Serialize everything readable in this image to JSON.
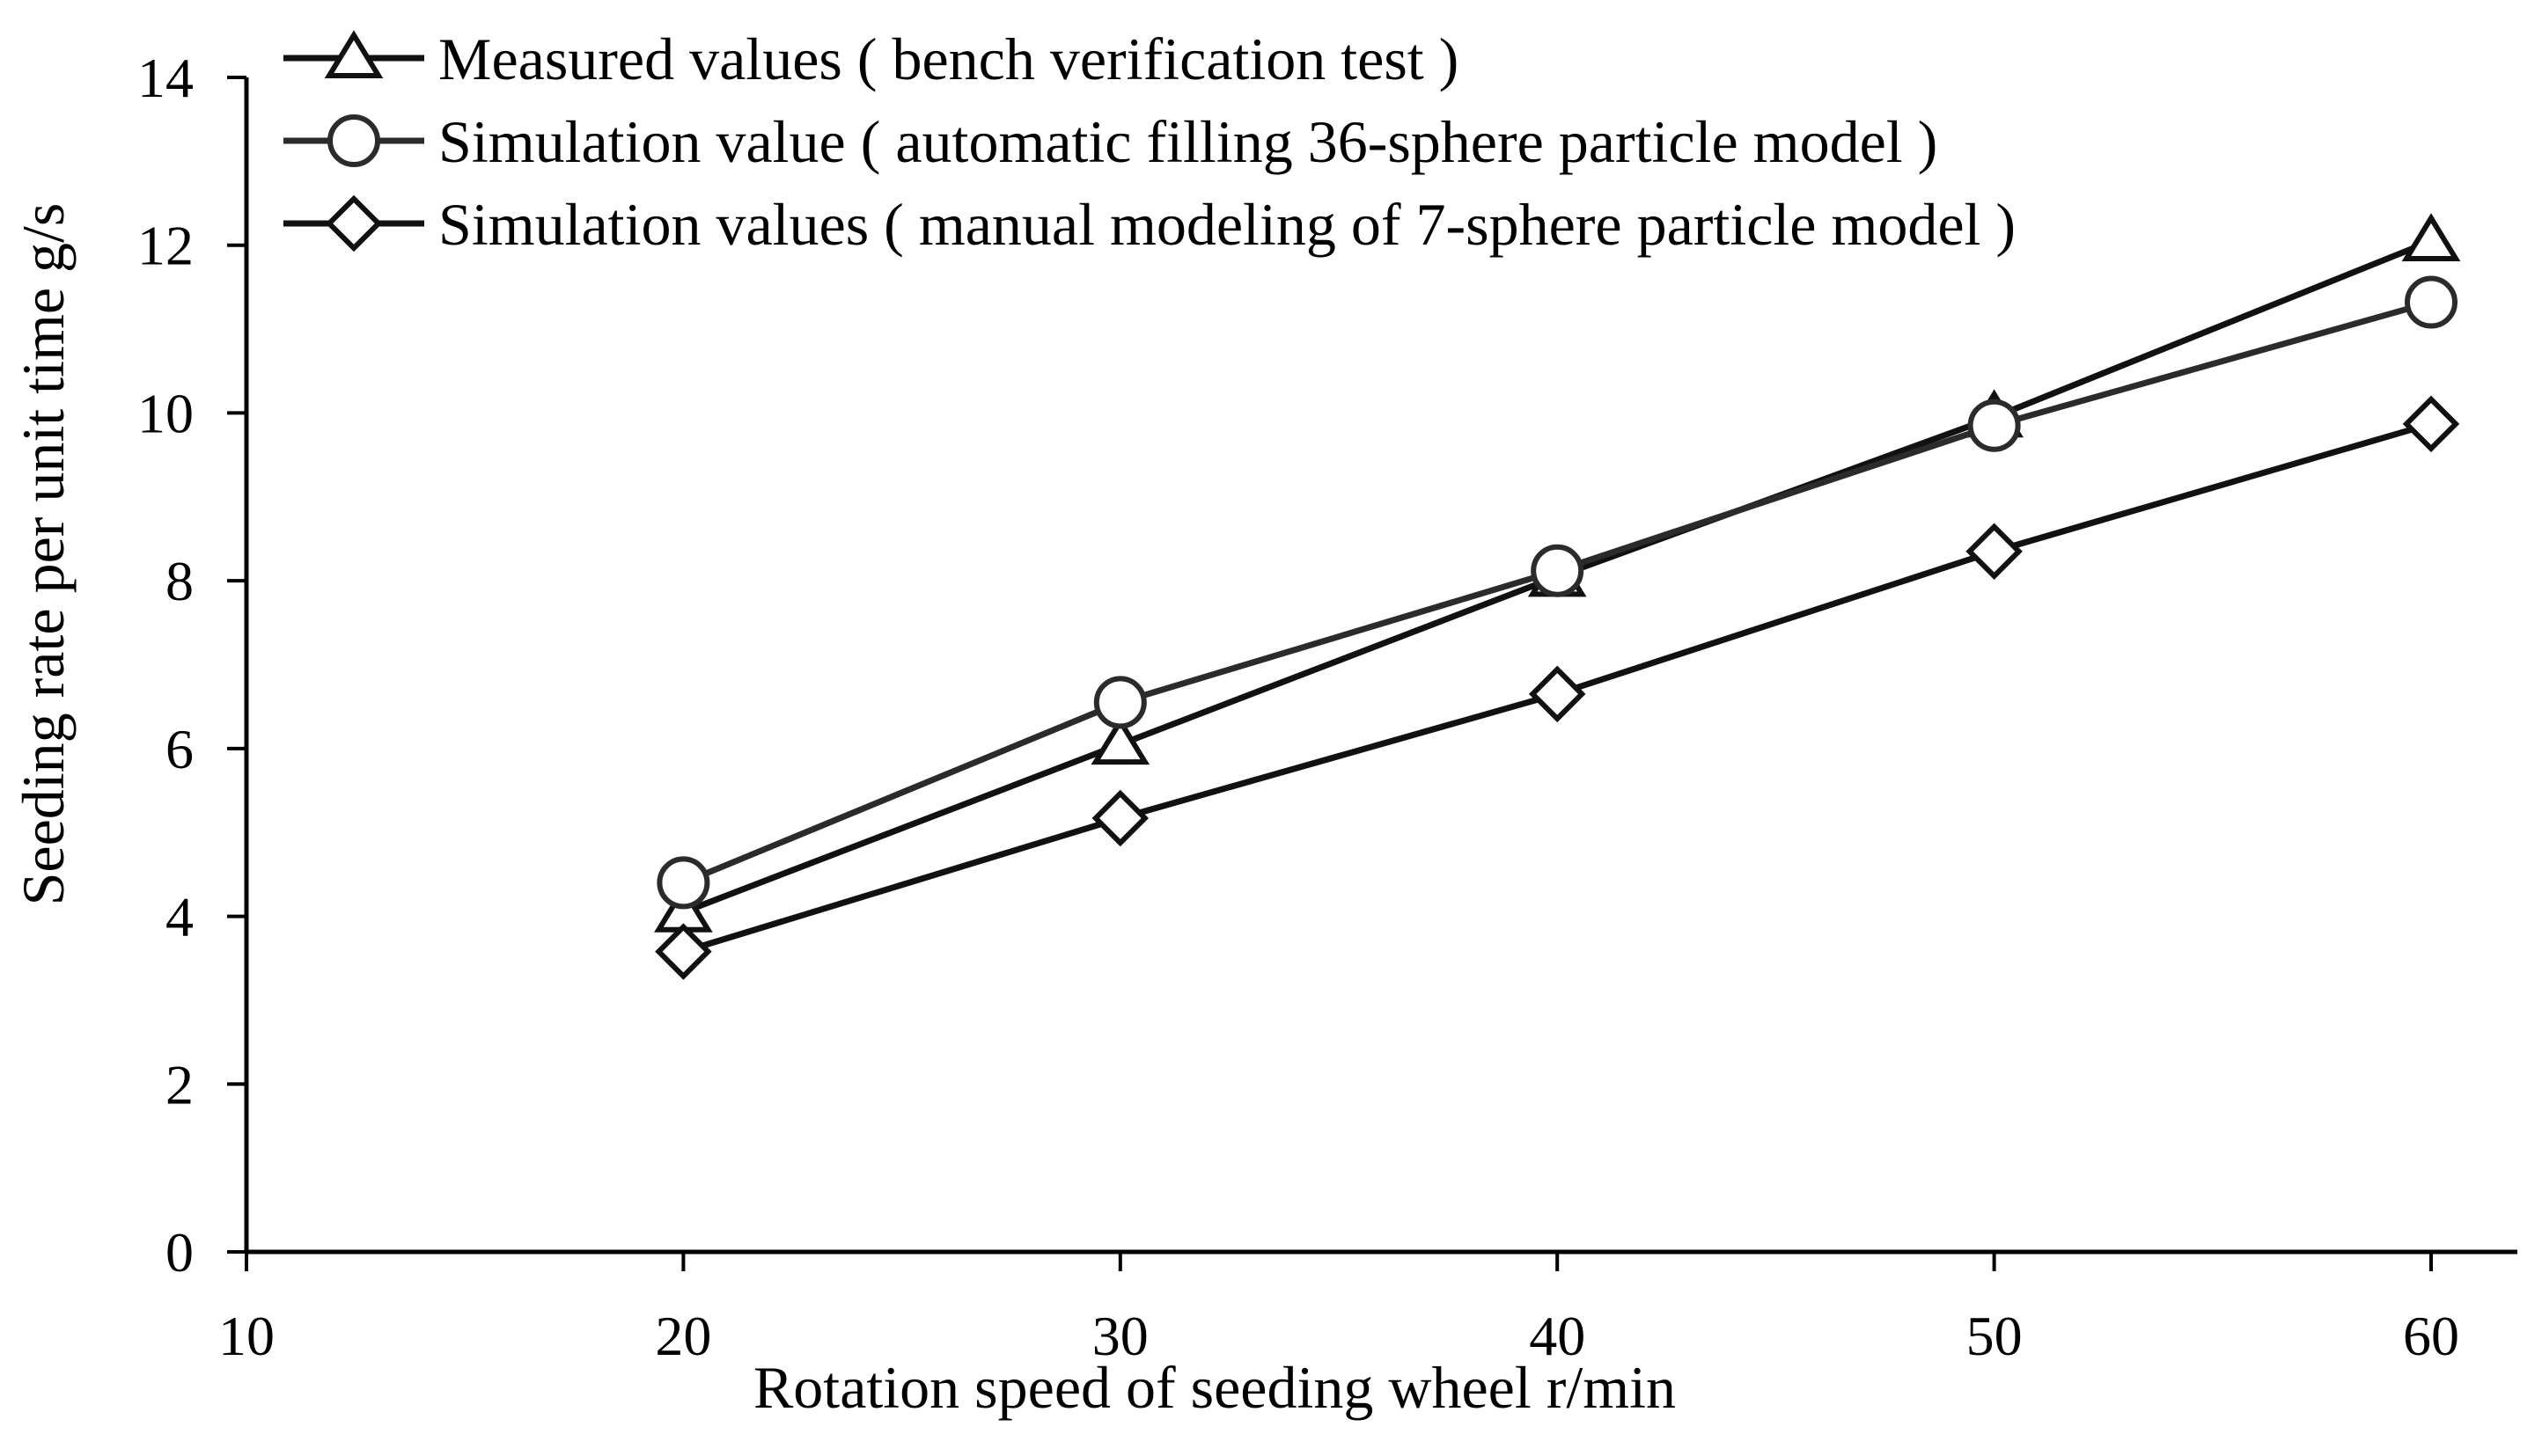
{
  "chart_data": {
    "type": "line",
    "title": "",
    "xlabel": "Rotation speed of seeding wheel r/min",
    "ylabel": "Seeding rate per unit time g/s",
    "xlim": [
      10,
      62
    ],
    "ylim": [
      0,
      14
    ],
    "xticks": [
      10,
      20,
      30,
      40,
      50,
      60
    ],
    "yticks": [
      0,
      2,
      4,
      6,
      8,
      10,
      12,
      14
    ],
    "x": [
      20,
      30,
      40,
      50,
      60
    ],
    "grid": false,
    "legend_position": "top-left",
    "series": [
      {
        "name": "Measured values ( bench verification test )",
        "marker": "triangle",
        "color": "#111111",
        "values": [
          4.05,
          6.05,
          8.05,
          9.95,
          12.05
        ]
      },
      {
        "name": "Simulation value ( automatic filling 36-sphere particle model )",
        "marker": "circle",
        "color": "#2b2b2b",
        "values": [
          4.4,
          6.55,
          8.12,
          9.85,
          11.32
        ]
      },
      {
        "name": "Simulation values ( manual modeling of 7-sphere particle model )",
        "marker": "diamond",
        "color": "#111111",
        "values": [
          3.58,
          5.17,
          6.65,
          8.35,
          9.87
        ]
      }
    ]
  }
}
